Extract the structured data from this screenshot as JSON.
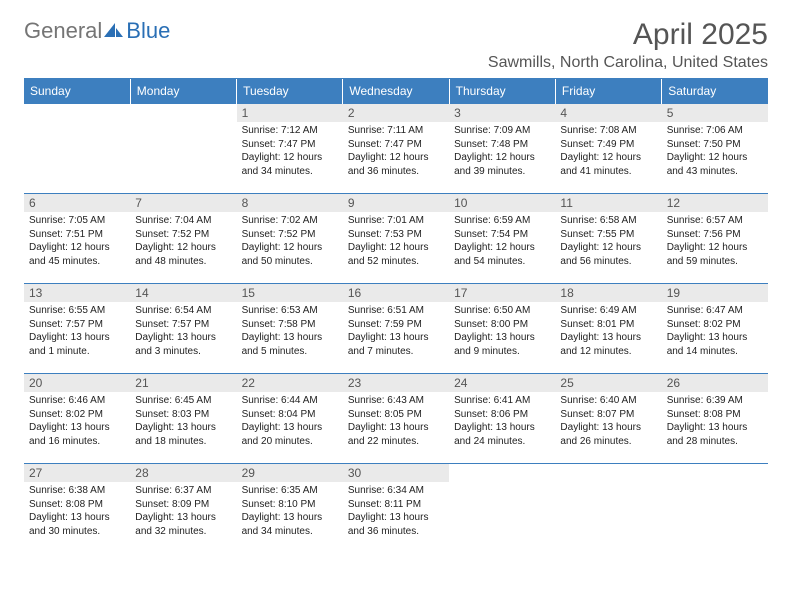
{
  "logo": {
    "text1": "General",
    "text2": "Blue"
  },
  "title": "April 2025",
  "location": "Sawmills, North Carolina, United States",
  "colors": {
    "header_bg": "#3d7fbf",
    "header_fg": "#ffffff",
    "daynum_bg": "#eaeaea",
    "daynum_fg": "#555555",
    "text": "#222222",
    "rule": "#3d7fbf",
    "logo_gray": "#757575",
    "logo_blue": "#2a6fb5",
    "title_color": "#555555"
  },
  "weekdays": [
    "Sunday",
    "Monday",
    "Tuesday",
    "Wednesday",
    "Thursday",
    "Friday",
    "Saturday"
  ],
  "weeks": [
    [
      null,
      null,
      {
        "n": "1",
        "sunrise": "7:12 AM",
        "sunset": "7:47 PM",
        "daylight": "12 hours and 34 minutes."
      },
      {
        "n": "2",
        "sunrise": "7:11 AM",
        "sunset": "7:47 PM",
        "daylight": "12 hours and 36 minutes."
      },
      {
        "n": "3",
        "sunrise": "7:09 AM",
        "sunset": "7:48 PM",
        "daylight": "12 hours and 39 minutes."
      },
      {
        "n": "4",
        "sunrise": "7:08 AM",
        "sunset": "7:49 PM",
        "daylight": "12 hours and 41 minutes."
      },
      {
        "n": "5",
        "sunrise": "7:06 AM",
        "sunset": "7:50 PM",
        "daylight": "12 hours and 43 minutes."
      }
    ],
    [
      {
        "n": "6",
        "sunrise": "7:05 AM",
        "sunset": "7:51 PM",
        "daylight": "12 hours and 45 minutes."
      },
      {
        "n": "7",
        "sunrise": "7:04 AM",
        "sunset": "7:52 PM",
        "daylight": "12 hours and 48 minutes."
      },
      {
        "n": "8",
        "sunrise": "7:02 AM",
        "sunset": "7:52 PM",
        "daylight": "12 hours and 50 minutes."
      },
      {
        "n": "9",
        "sunrise": "7:01 AM",
        "sunset": "7:53 PM",
        "daylight": "12 hours and 52 minutes."
      },
      {
        "n": "10",
        "sunrise": "6:59 AM",
        "sunset": "7:54 PM",
        "daylight": "12 hours and 54 minutes."
      },
      {
        "n": "11",
        "sunrise": "6:58 AM",
        "sunset": "7:55 PM",
        "daylight": "12 hours and 56 minutes."
      },
      {
        "n": "12",
        "sunrise": "6:57 AM",
        "sunset": "7:56 PM",
        "daylight": "12 hours and 59 minutes."
      }
    ],
    [
      {
        "n": "13",
        "sunrise": "6:55 AM",
        "sunset": "7:57 PM",
        "daylight": "13 hours and 1 minute."
      },
      {
        "n": "14",
        "sunrise": "6:54 AM",
        "sunset": "7:57 PM",
        "daylight": "13 hours and 3 minutes."
      },
      {
        "n": "15",
        "sunrise": "6:53 AM",
        "sunset": "7:58 PM",
        "daylight": "13 hours and 5 minutes."
      },
      {
        "n": "16",
        "sunrise": "6:51 AM",
        "sunset": "7:59 PM",
        "daylight": "13 hours and 7 minutes."
      },
      {
        "n": "17",
        "sunrise": "6:50 AM",
        "sunset": "8:00 PM",
        "daylight": "13 hours and 9 minutes."
      },
      {
        "n": "18",
        "sunrise": "6:49 AM",
        "sunset": "8:01 PM",
        "daylight": "13 hours and 12 minutes."
      },
      {
        "n": "19",
        "sunrise": "6:47 AM",
        "sunset": "8:02 PM",
        "daylight": "13 hours and 14 minutes."
      }
    ],
    [
      {
        "n": "20",
        "sunrise": "6:46 AM",
        "sunset": "8:02 PM",
        "daylight": "13 hours and 16 minutes."
      },
      {
        "n": "21",
        "sunrise": "6:45 AM",
        "sunset": "8:03 PM",
        "daylight": "13 hours and 18 minutes."
      },
      {
        "n": "22",
        "sunrise": "6:44 AM",
        "sunset": "8:04 PM",
        "daylight": "13 hours and 20 minutes."
      },
      {
        "n": "23",
        "sunrise": "6:43 AM",
        "sunset": "8:05 PM",
        "daylight": "13 hours and 22 minutes."
      },
      {
        "n": "24",
        "sunrise": "6:41 AM",
        "sunset": "8:06 PM",
        "daylight": "13 hours and 24 minutes."
      },
      {
        "n": "25",
        "sunrise": "6:40 AM",
        "sunset": "8:07 PM",
        "daylight": "13 hours and 26 minutes."
      },
      {
        "n": "26",
        "sunrise": "6:39 AM",
        "sunset": "8:08 PM",
        "daylight": "13 hours and 28 minutes."
      }
    ],
    [
      {
        "n": "27",
        "sunrise": "6:38 AM",
        "sunset": "8:08 PM",
        "daylight": "13 hours and 30 minutes."
      },
      {
        "n": "28",
        "sunrise": "6:37 AM",
        "sunset": "8:09 PM",
        "daylight": "13 hours and 32 minutes."
      },
      {
        "n": "29",
        "sunrise": "6:35 AM",
        "sunset": "8:10 PM",
        "daylight": "13 hours and 34 minutes."
      },
      {
        "n": "30",
        "sunrise": "6:34 AM",
        "sunset": "8:11 PM",
        "daylight": "13 hours and 36 minutes."
      },
      null,
      null,
      null
    ]
  ],
  "labels": {
    "sunrise": "Sunrise: ",
    "sunset": "Sunset: ",
    "daylight": "Daylight: "
  }
}
